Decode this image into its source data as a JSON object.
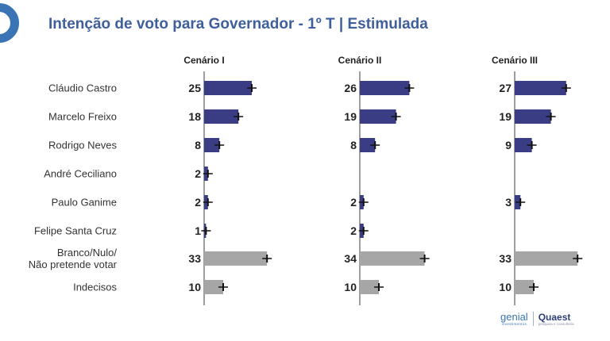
{
  "title": "Intenção de voto para Governador - 1º T | Estimulada",
  "chart_data": {
    "type": "bar",
    "orientation": "horizontal",
    "categories": [
      "Cláudio Castro",
      "Marcelo Freixo",
      "Rodrigo Neves",
      "André Ceciliano",
      "Paulo Ganime",
      "Felipe Santa Cruz",
      "Branco/Nulo/\nNão pretende votar",
      "Indecisos"
    ],
    "panels": [
      {
        "name": "Cenário I",
        "values": [
          25,
          18,
          8,
          2,
          2,
          1,
          33,
          10
        ]
      },
      {
        "name": "Cenário II",
        "values": [
          26,
          19,
          8,
          null,
          2,
          2,
          34,
          10
        ]
      },
      {
        "name": "Cenário III",
        "values": [
          27,
          19,
          9,
          null,
          3,
          null,
          33,
          10
        ]
      }
    ],
    "colors": {
      "candidate": "#3a3d84",
      "other": "#a6a6a6",
      "error_bar": "#111111",
      "axis": "#9e9e9e"
    },
    "error_bars": true
  },
  "footer": {
    "genial": "genial",
    "genial_sub": "investimentos",
    "quaest": "Quaest",
    "quaest_sub": "pesquisa e consultoria"
  }
}
